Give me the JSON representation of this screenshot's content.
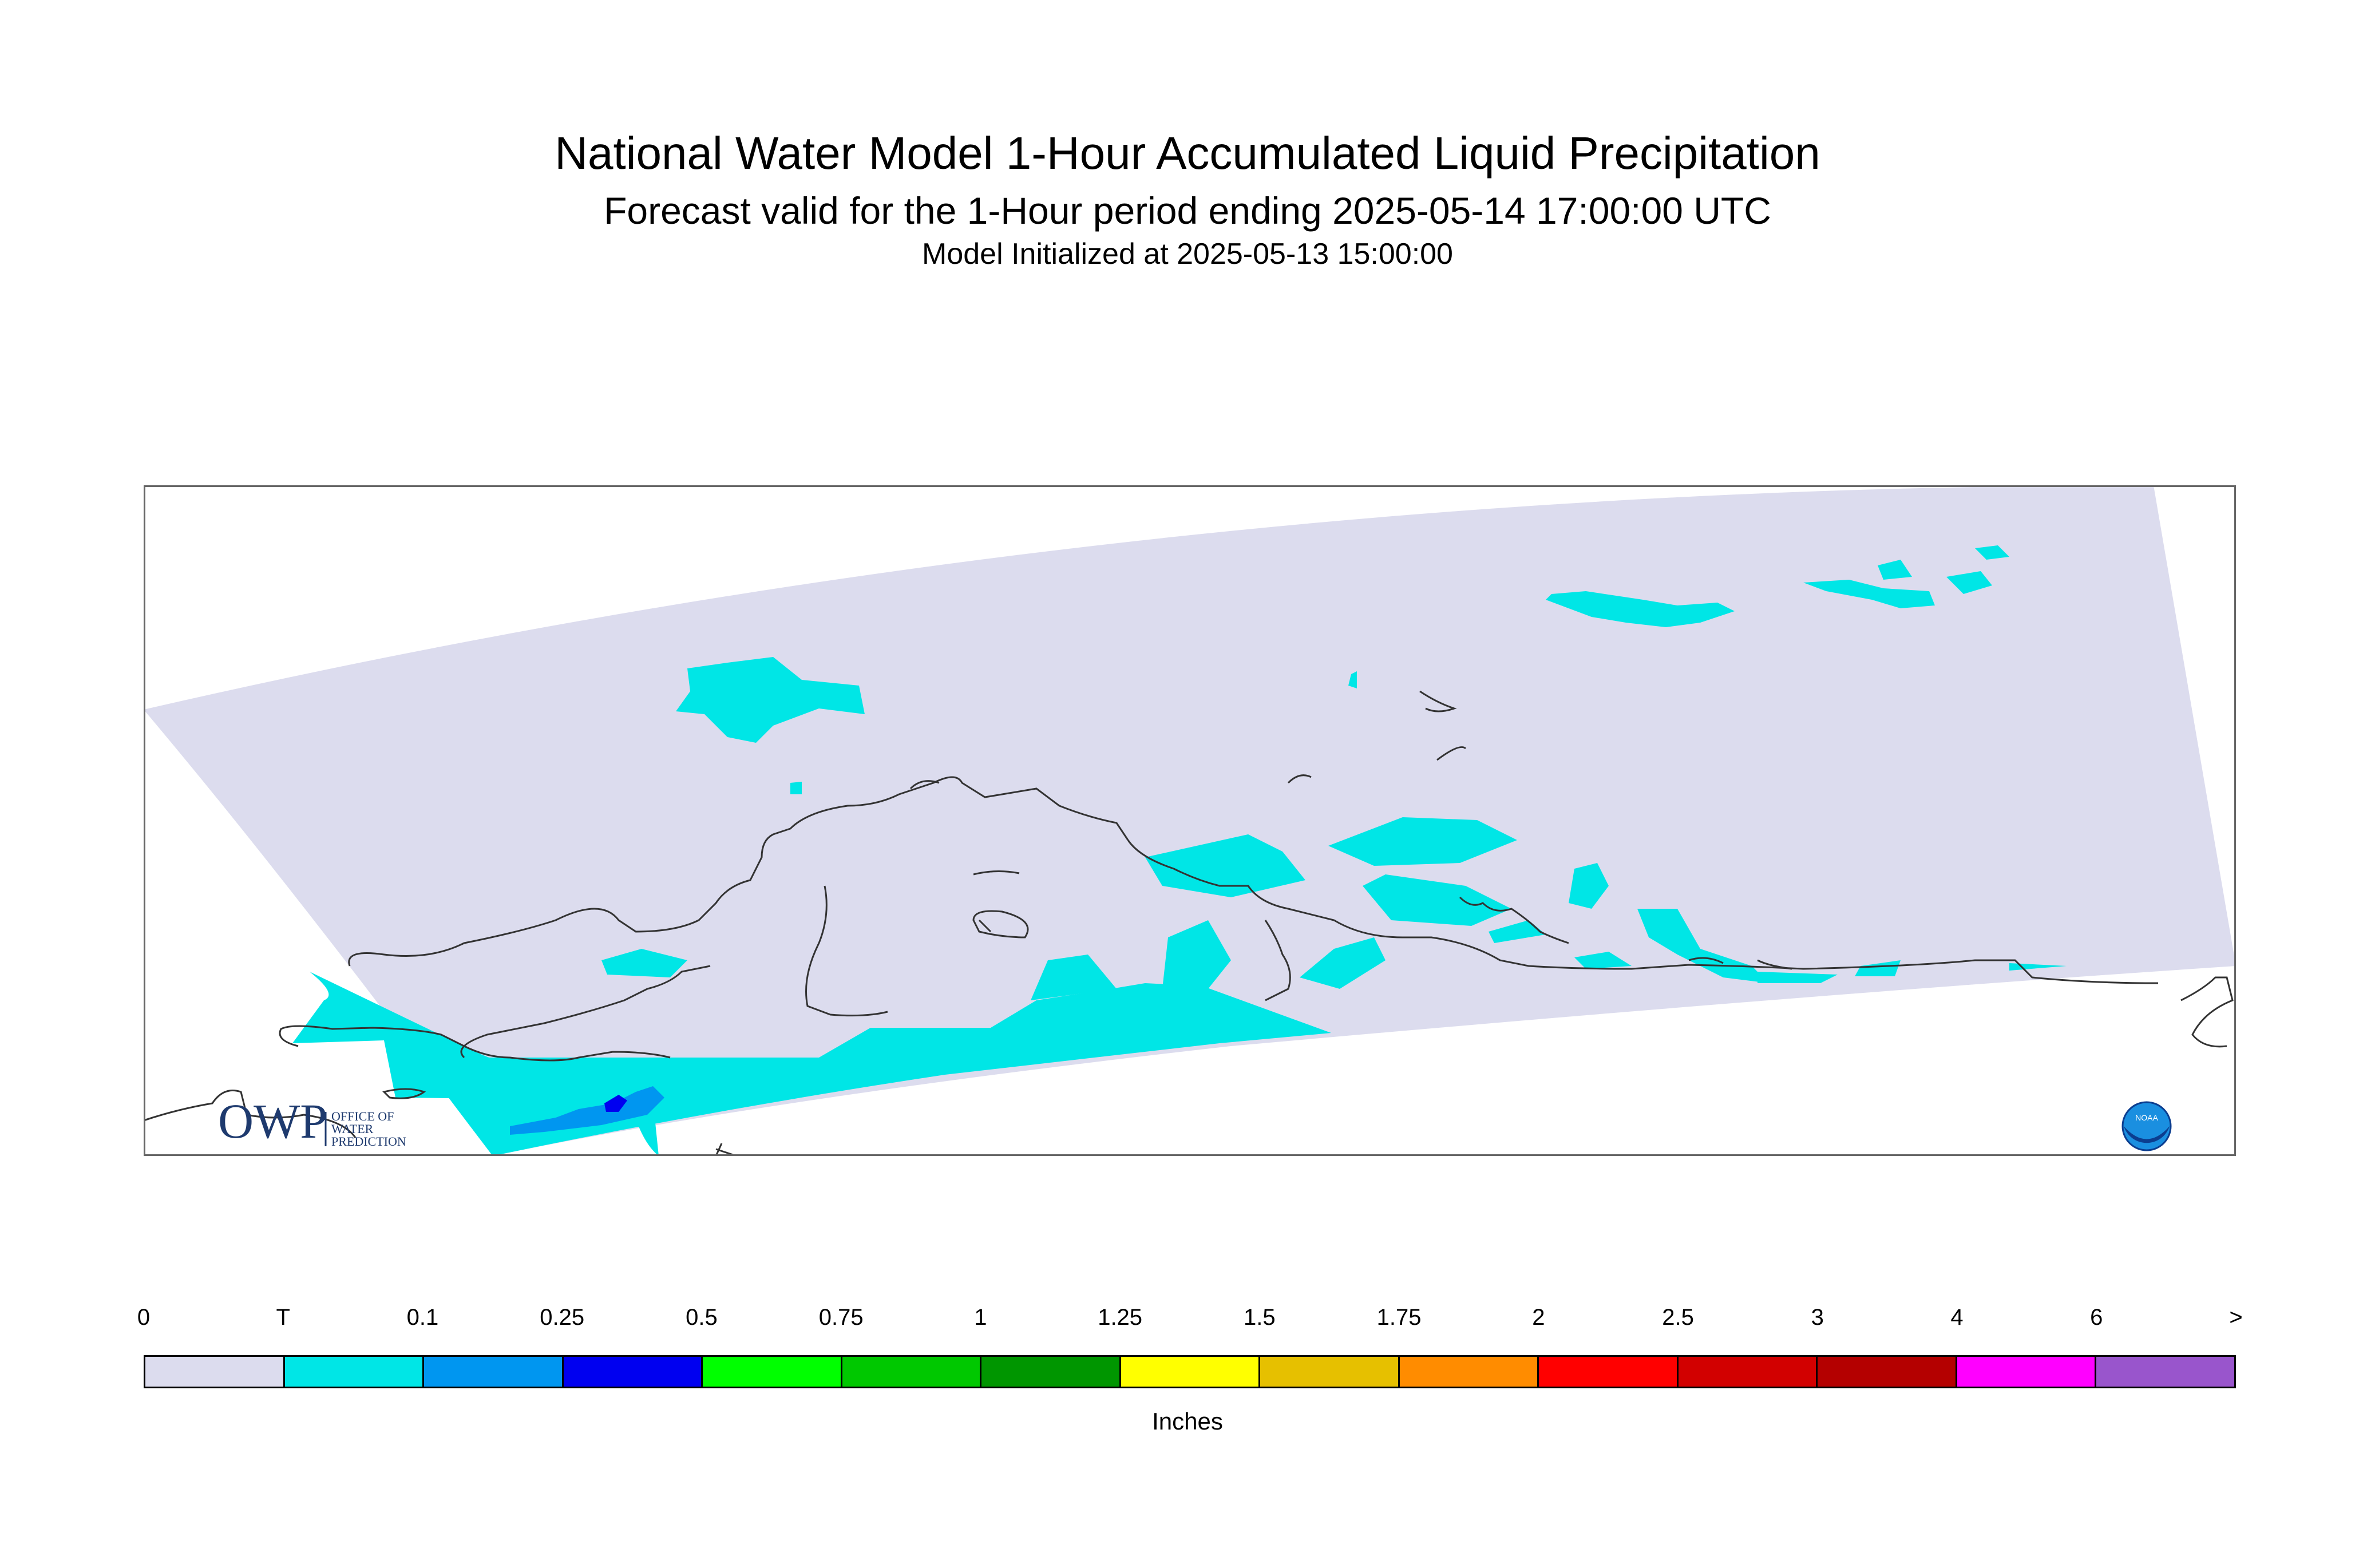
{
  "header": {
    "title": "National Water Model 1-Hour Accumulated Liquid Precipitation",
    "subtitle": "Forecast valid for the 1-Hour period ending 2025-05-14 17:00:00 UTC",
    "init": "Model Initialized at 2025-05-13 15:00:00"
  },
  "map": {
    "region": "Alaska",
    "background_color": "#dcdcee",
    "coastline_color": "#333333",
    "logos": {
      "owp": {
        "letters": "OWP",
        "text": [
          "OFFICE OF",
          "WATER",
          "PREDICTION"
        ]
      },
      "noaa": {
        "text": "NOAA"
      }
    }
  },
  "legend": {
    "units": "Inches",
    "ticks": [
      "0",
      "T",
      "0.1",
      "0.25",
      "0.5",
      "0.75",
      "1",
      "1.25",
      "1.5",
      "1.75",
      "2",
      "2.5",
      "3",
      "4",
      "6",
      ">"
    ],
    "colors": [
      "#dcdcee",
      "#00e6e6",
      "#0096f0",
      "#0000f0",
      "#00ff00",
      "#00c800",
      "#009600",
      "#ffff00",
      "#e6c000",
      "#ff8c00",
      "#ff0000",
      "#d20000",
      "#b40000",
      "#ff00ff",
      "#9955cc"
    ]
  }
}
